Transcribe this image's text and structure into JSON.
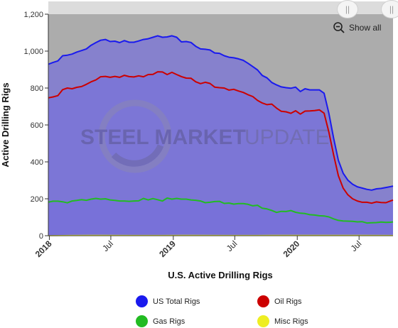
{
  "chart_data": {
    "type": "area",
    "title": "",
    "xlabel": "U.S. Active Drilling Rigs",
    "ylabel": "Active Drilling Rigs",
    "ylim": [
      0,
      1200
    ],
    "yticks": [
      0,
      200,
      400,
      600,
      800,
      1000,
      1200
    ],
    "ytick_labels": [
      "0",
      "200",
      "400",
      "600",
      "800",
      "1,000",
      "1,200"
    ],
    "xlim": [
      "2017-12-29",
      "2020-10-09"
    ],
    "xticks": [
      {
        "date": "2018-01-01",
        "label": "2018",
        "bold": true
      },
      {
        "date": "2018-07-01",
        "label": "Jul",
        "bold": false
      },
      {
        "date": "2019-01-01",
        "label": "2019",
        "bold": true
      },
      {
        "date": "2019-07-01",
        "label": "Jul",
        "bold": false
      },
      {
        "date": "2020-01-01",
        "label": "2020",
        "bold": true
      },
      {
        "date": "2020-07-01",
        "label": "Jul",
        "bold": false
      }
    ],
    "legend_position": "bottom",
    "grid": false,
    "series": [
      {
        "name": "US Total Rigs",
        "color": "#1a1aee",
        "points": [
          [
            "2017-12-29",
            929
          ],
          [
            "2018-01-12",
            939
          ],
          [
            "2018-01-26",
            947
          ],
          [
            "2018-02-09",
            975
          ],
          [
            "2018-02-23",
            978
          ],
          [
            "2018-03-09",
            984
          ],
          [
            "2018-03-23",
            995
          ],
          [
            "2018-04-06",
            1003
          ],
          [
            "2018-04-20",
            1012
          ],
          [
            "2018-05-04",
            1032
          ],
          [
            "2018-05-18",
            1046
          ],
          [
            "2018-06-01",
            1059
          ],
          [
            "2018-06-15",
            1063
          ],
          [
            "2018-06-29",
            1052
          ],
          [
            "2018-07-13",
            1054
          ],
          [
            "2018-07-27",
            1046
          ],
          [
            "2018-08-10",
            1057
          ],
          [
            "2018-08-24",
            1048
          ],
          [
            "2018-09-07",
            1048
          ],
          [
            "2018-09-21",
            1055
          ],
          [
            "2018-10-05",
            1063
          ],
          [
            "2018-10-19",
            1067
          ],
          [
            "2018-11-02",
            1075
          ],
          [
            "2018-11-16",
            1083
          ],
          [
            "2018-11-30",
            1075
          ],
          [
            "2018-12-14",
            1077
          ],
          [
            "2018-12-28",
            1083
          ],
          [
            "2019-01-11",
            1075
          ],
          [
            "2019-01-25",
            1050
          ],
          [
            "2019-02-08",
            1052
          ],
          [
            "2019-02-22",
            1047
          ],
          [
            "2019-03-08",
            1026
          ],
          [
            "2019-03-22",
            1012
          ],
          [
            "2019-04-05",
            1010
          ],
          [
            "2019-04-19",
            1006
          ],
          [
            "2019-05-03",
            990
          ],
          [
            "2019-05-17",
            988
          ],
          [
            "2019-05-31",
            975
          ],
          [
            "2019-06-14",
            967
          ],
          [
            "2019-06-28",
            964
          ],
          [
            "2019-07-12",
            958
          ],
          [
            "2019-07-26",
            950
          ],
          [
            "2019-08-09",
            934
          ],
          [
            "2019-08-23",
            916
          ],
          [
            "2019-09-06",
            898
          ],
          [
            "2019-09-20",
            868
          ],
          [
            "2019-10-04",
            855
          ],
          [
            "2019-10-18",
            830
          ],
          [
            "2019-11-01",
            817
          ],
          [
            "2019-11-15",
            806
          ],
          [
            "2019-11-29",
            802
          ],
          [
            "2019-12-13",
            799
          ],
          [
            "2019-12-27",
            805
          ],
          [
            "2020-01-10",
            781
          ],
          [
            "2020-01-24",
            796
          ],
          [
            "2020-02-07",
            790
          ],
          [
            "2020-02-21",
            790
          ],
          [
            "2020-03-06",
            790
          ],
          [
            "2020-03-20",
            772
          ],
          [
            "2020-04-03",
            664
          ],
          [
            "2020-04-17",
            529
          ],
          [
            "2020-05-01",
            408
          ],
          [
            "2020-05-15",
            339
          ],
          [
            "2020-05-29",
            301
          ],
          [
            "2020-06-12",
            279
          ],
          [
            "2020-06-26",
            265
          ],
          [
            "2020-07-10",
            258
          ],
          [
            "2020-07-24",
            251
          ],
          [
            "2020-08-07",
            247
          ],
          [
            "2020-08-21",
            254
          ],
          [
            "2020-09-04",
            256
          ],
          [
            "2020-09-18",
            261
          ],
          [
            "2020-10-02",
            266
          ],
          [
            "2020-10-09",
            269
          ]
        ]
      },
      {
        "name": "Oil Rigs",
        "color": "#cc0000",
        "points": [
          [
            "2017-12-29",
            747
          ],
          [
            "2018-01-12",
            752
          ],
          [
            "2018-01-26",
            759
          ],
          [
            "2018-02-09",
            791
          ],
          [
            "2018-02-23",
            800
          ],
          [
            "2018-03-09",
            796
          ],
          [
            "2018-03-23",
            804
          ],
          [
            "2018-04-06",
            808
          ],
          [
            "2018-04-20",
            820
          ],
          [
            "2018-05-04",
            834
          ],
          [
            "2018-05-18",
            844
          ],
          [
            "2018-06-01",
            861
          ],
          [
            "2018-06-15",
            863
          ],
          [
            "2018-06-29",
            858
          ],
          [
            "2018-07-13",
            863
          ],
          [
            "2018-07-27",
            858
          ],
          [
            "2018-08-10",
            869
          ],
          [
            "2018-08-24",
            862
          ],
          [
            "2018-09-07",
            860
          ],
          [
            "2018-09-21",
            866
          ],
          [
            "2018-10-05",
            861
          ],
          [
            "2018-10-19",
            873
          ],
          [
            "2018-11-02",
            874
          ],
          [
            "2018-11-16",
            888
          ],
          [
            "2018-11-30",
            887
          ],
          [
            "2018-12-14",
            873
          ],
          [
            "2018-12-28",
            885
          ],
          [
            "2019-01-11",
            873
          ],
          [
            "2019-01-25",
            862
          ],
          [
            "2019-02-08",
            854
          ],
          [
            "2019-02-22",
            853
          ],
          [
            "2019-03-08",
            834
          ],
          [
            "2019-03-22",
            824
          ],
          [
            "2019-04-05",
            831
          ],
          [
            "2019-04-19",
            825
          ],
          [
            "2019-05-03",
            805
          ],
          [
            "2019-05-17",
            802
          ],
          [
            "2019-05-31",
            800
          ],
          [
            "2019-06-14",
            789
          ],
          [
            "2019-06-28",
            793
          ],
          [
            "2019-07-12",
            784
          ],
          [
            "2019-07-26",
            776
          ],
          [
            "2019-08-09",
            764
          ],
          [
            "2019-08-23",
            754
          ],
          [
            "2019-09-06",
            733
          ],
          [
            "2019-09-20",
            719
          ],
          [
            "2019-10-04",
            710
          ],
          [
            "2019-10-18",
            713
          ],
          [
            "2019-11-01",
            691
          ],
          [
            "2019-11-15",
            674
          ],
          [
            "2019-11-29",
            671
          ],
          [
            "2019-12-13",
            663
          ],
          [
            "2019-12-27",
            677
          ],
          [
            "2020-01-10",
            659
          ],
          [
            "2020-01-24",
            675
          ],
          [
            "2020-02-07",
            676
          ],
          [
            "2020-02-21",
            678
          ],
          [
            "2020-03-06",
            682
          ],
          [
            "2020-03-20",
            664
          ],
          [
            "2020-04-03",
            562
          ],
          [
            "2020-04-17",
            438
          ],
          [
            "2020-05-01",
            325
          ],
          [
            "2020-05-15",
            258
          ],
          [
            "2020-05-29",
            222
          ],
          [
            "2020-06-12",
            200
          ],
          [
            "2020-06-26",
            188
          ],
          [
            "2020-07-10",
            181
          ],
          [
            "2020-07-24",
            181
          ],
          [
            "2020-08-07",
            176
          ],
          [
            "2020-08-21",
            183
          ],
          [
            "2020-09-04",
            180
          ],
          [
            "2020-09-18",
            179
          ],
          [
            "2020-10-02",
            189
          ],
          [
            "2020-10-09",
            193
          ]
        ]
      },
      {
        "name": "Gas Rigs",
        "color": "#22bb22",
        "points": [
          [
            "2017-12-29",
            182
          ],
          [
            "2018-01-12",
            187
          ],
          [
            "2018-01-26",
            187
          ],
          [
            "2018-02-09",
            184
          ],
          [
            "2018-02-23",
            178
          ],
          [
            "2018-03-09",
            188
          ],
          [
            "2018-03-23",
            191
          ],
          [
            "2018-04-06",
            195
          ],
          [
            "2018-04-20",
            192
          ],
          [
            "2018-05-04",
            198
          ],
          [
            "2018-05-18",
            202
          ],
          [
            "2018-06-01",
            198
          ],
          [
            "2018-06-15",
            200
          ],
          [
            "2018-06-29",
            194
          ],
          [
            "2018-07-13",
            191
          ],
          [
            "2018-07-27",
            188
          ],
          [
            "2018-08-10",
            188
          ],
          [
            "2018-08-24",
            186
          ],
          [
            "2018-09-07",
            188
          ],
          [
            "2018-09-21",
            189
          ],
          [
            "2018-10-05",
            202
          ],
          [
            "2018-10-19",
            194
          ],
          [
            "2018-11-02",
            201
          ],
          [
            "2018-11-16",
            195
          ],
          [
            "2018-11-30",
            188
          ],
          [
            "2018-12-14",
            204
          ],
          [
            "2018-12-28",
            198
          ],
          [
            "2019-01-11",
            202
          ],
          [
            "2019-01-25",
            198
          ],
          [
            "2019-02-08",
            198
          ],
          [
            "2019-02-22",
            194
          ],
          [
            "2019-03-08",
            192
          ],
          [
            "2019-03-22",
            188
          ],
          [
            "2019-04-05",
            179
          ],
          [
            "2019-04-19",
            181
          ],
          [
            "2019-05-03",
            185
          ],
          [
            "2019-05-17",
            186
          ],
          [
            "2019-05-31",
            175
          ],
          [
            "2019-06-14",
            177
          ],
          [
            "2019-06-28",
            171
          ],
          [
            "2019-07-12",
            174
          ],
          [
            "2019-07-26",
            174
          ],
          [
            "2019-08-09",
            170
          ],
          [
            "2019-08-23",
            162
          ],
          [
            "2019-09-06",
            165
          ],
          [
            "2019-09-20",
            149
          ],
          [
            "2019-10-04",
            145
          ],
          [
            "2019-10-18",
            137
          ],
          [
            "2019-11-01",
            126
          ],
          [
            "2019-11-15",
            132
          ],
          [
            "2019-11-29",
            131
          ],
          [
            "2019-12-13",
            136
          ],
          [
            "2019-12-27",
            127
          ],
          [
            "2020-01-10",
            122
          ],
          [
            "2020-01-24",
            120
          ],
          [
            "2020-02-07",
            114
          ],
          [
            "2020-02-21",
            112
          ],
          [
            "2020-03-06",
            108
          ],
          [
            "2020-03-20",
            107
          ],
          [
            "2020-04-03",
            102
          ],
          [
            "2020-04-17",
            91
          ],
          [
            "2020-05-01",
            83
          ],
          [
            "2020-05-15",
            80
          ],
          [
            "2020-05-29",
            79
          ],
          [
            "2020-06-12",
            78
          ],
          [
            "2020-06-26",
            75
          ],
          [
            "2020-07-10",
            76
          ],
          [
            "2020-07-24",
            69
          ],
          [
            "2020-08-07",
            70
          ],
          [
            "2020-08-21",
            71
          ],
          [
            "2020-09-04",
            74
          ],
          [
            "2020-09-18",
            72
          ],
          [
            "2020-10-02",
            73
          ],
          [
            "2020-10-09",
            75
          ]
        ]
      },
      {
        "name": "Misc Rigs",
        "color": "#eeee22",
        "points": [
          [
            "2017-12-29",
            0
          ],
          [
            "2018-03-01",
            1
          ],
          [
            "2018-06-01",
            2
          ],
          [
            "2018-09-01",
            1
          ],
          [
            "2018-12-01",
            1
          ],
          [
            "2019-03-01",
            2
          ],
          [
            "2019-06-01",
            1
          ],
          [
            "2019-09-01",
            1
          ],
          [
            "2019-12-01",
            2
          ],
          [
            "2020-03-01",
            2
          ],
          [
            "2020-06-01",
            2
          ],
          [
            "2020-10-09",
            1
          ]
        ]
      }
    ]
  },
  "toolbar": {
    "show_all_label": "Show all",
    "zoom_icon": "zoom-out-icon",
    "handle_icon": "grip-icon"
  },
  "watermark": {
    "text_bold": "STEEL MARKET",
    "text_light": "UPDATE"
  }
}
